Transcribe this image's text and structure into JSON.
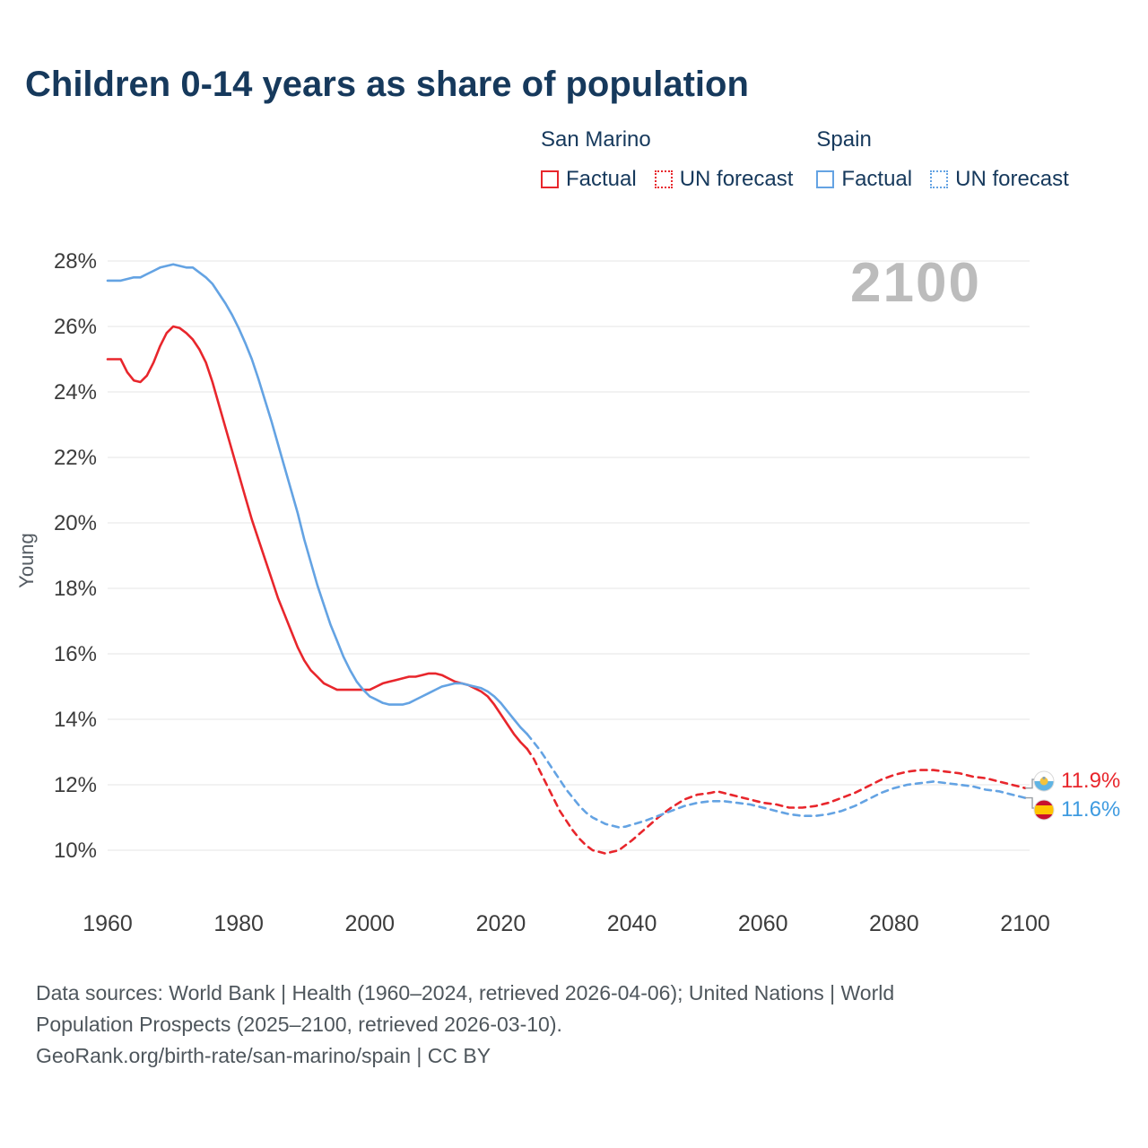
{
  "title": "Children 0-14 years as share of population",
  "watermark": "2100",
  "legend": {
    "groups": [
      {
        "name": "San Marino",
        "color": "#e8262c",
        "items": [
          {
            "label": "Factual",
            "style": "solid"
          },
          {
            "label": "UN forecast",
            "style": "dotted"
          }
        ]
      },
      {
        "name": "Spain",
        "color": "#64a3e3",
        "items": [
          {
            "label": "Factual",
            "style": "solid"
          },
          {
            "label": "UN forecast",
            "style": "dotted"
          }
        ]
      }
    ]
  },
  "end_labels": [
    {
      "label": "11.9%",
      "value": 11.9,
      "color": "#e8262c",
      "flag": "san-marino-flag-icon"
    },
    {
      "label": "11.6%",
      "value": 11.6,
      "color": "#3f9be0",
      "flag": "spain-flag-icon"
    }
  ],
  "footer": {
    "lines": [
      "Data sources: World Bank | Health (1960–2024, retrieved 2026-04-06); United Nations | World",
      "Population Prospects (2025–2100, retrieved 2026-03-10).",
      "GeoRank.org/birth-rate/san-marino/spain | CC BY"
    ]
  },
  "chart_data": {
    "type": "line",
    "title": "Children 0-14 years as share of population",
    "xlabel": "",
    "ylabel": "Young",
    "xlim": [
      1960,
      2100
    ],
    "ylim": [
      10,
      28
    ],
    "x_ticks": [
      1960,
      1980,
      2000,
      2020,
      2040,
      2060,
      2080,
      2100
    ],
    "y_ticks": [
      28,
      26,
      24,
      22,
      20,
      18,
      16,
      14,
      12,
      10
    ],
    "y_tick_suffix": "%",
    "grid": true,
    "legend_position": "top-right",
    "series": [
      {
        "name": "San Marino Factual",
        "color": "#e8262c",
        "dash": "solid",
        "points": [
          [
            1960,
            25.0
          ],
          [
            1961,
            25.0
          ],
          [
            1962,
            25.0
          ],
          [
            1963,
            24.6
          ],
          [
            1964,
            24.35
          ],
          [
            1965,
            24.3
          ],
          [
            1966,
            24.5
          ],
          [
            1967,
            24.9
          ],
          [
            1968,
            25.4
          ],
          [
            1969,
            25.8
          ],
          [
            1970,
            26.0
          ],
          [
            1971,
            25.95
          ],
          [
            1972,
            25.8
          ],
          [
            1973,
            25.6
          ],
          [
            1974,
            25.3
          ],
          [
            1975,
            24.9
          ],
          [
            1976,
            24.3
          ],
          [
            1977,
            23.6
          ],
          [
            1978,
            22.9
          ],
          [
            1979,
            22.2
          ],
          [
            1980,
            21.5
          ],
          [
            1981,
            20.8
          ],
          [
            1982,
            20.1
          ],
          [
            1983,
            19.5
          ],
          [
            1984,
            18.9
          ],
          [
            1985,
            18.3
          ],
          [
            1986,
            17.7
          ],
          [
            1987,
            17.2
          ],
          [
            1988,
            16.7
          ],
          [
            1989,
            16.2
          ],
          [
            1990,
            15.8
          ],
          [
            1991,
            15.5
          ],
          [
            1992,
            15.3
          ],
          [
            1993,
            15.1
          ],
          [
            1994,
            15.0
          ],
          [
            1995,
            14.9
          ],
          [
            1996,
            14.9
          ],
          [
            1997,
            14.9
          ],
          [
            1998,
            14.9
          ],
          [
            1999,
            14.9
          ],
          [
            2000,
            14.9
          ],
          [
            2001,
            15.0
          ],
          [
            2002,
            15.1
          ],
          [
            2003,
            15.15
          ],
          [
            2004,
            15.2
          ],
          [
            2005,
            15.25
          ],
          [
            2006,
            15.3
          ],
          [
            2007,
            15.3
          ],
          [
            2008,
            15.35
          ],
          [
            2009,
            15.4
          ],
          [
            2010,
            15.4
          ],
          [
            2011,
            15.35
          ],
          [
            2012,
            15.25
          ],
          [
            2013,
            15.15
          ],
          [
            2014,
            15.1
          ],
          [
            2015,
            15.05
          ],
          [
            2016,
            14.95
          ],
          [
            2017,
            14.85
          ],
          [
            2018,
            14.7
          ],
          [
            2019,
            14.45
          ],
          [
            2020,
            14.15
          ],
          [
            2021,
            13.85
          ],
          [
            2022,
            13.55
          ],
          [
            2023,
            13.3
          ],
          [
            2024,
            13.1
          ]
        ]
      },
      {
        "name": "San Marino UN forecast",
        "color": "#e8262c",
        "dash": "dashed",
        "points": [
          [
            2024,
            13.1
          ],
          [
            2025,
            12.8
          ],
          [
            2026,
            12.4
          ],
          [
            2027,
            12.0
          ],
          [
            2028,
            11.6
          ],
          [
            2029,
            11.2
          ],
          [
            2030,
            10.9
          ],
          [
            2031,
            10.6
          ],
          [
            2032,
            10.35
          ],
          [
            2033,
            10.15
          ],
          [
            2034,
            10.0
          ],
          [
            2035,
            9.95
          ],
          [
            2036,
            9.9
          ],
          [
            2037,
            9.95
          ],
          [
            2038,
            10.0
          ],
          [
            2039,
            10.15
          ],
          [
            2040,
            10.3
          ],
          [
            2042,
            10.65
          ],
          [
            2044,
            11.0
          ],
          [
            2046,
            11.3
          ],
          [
            2048,
            11.55
          ],
          [
            2050,
            11.7
          ],
          [
            2052,
            11.75
          ],
          [
            2053,
            11.8
          ],
          [
            2054,
            11.75
          ],
          [
            2056,
            11.65
          ],
          [
            2058,
            11.55
          ],
          [
            2060,
            11.45
          ],
          [
            2062,
            11.4
          ],
          [
            2064,
            11.3
          ],
          [
            2066,
            11.3
          ],
          [
            2068,
            11.35
          ],
          [
            2070,
            11.45
          ],
          [
            2072,
            11.6
          ],
          [
            2074,
            11.75
          ],
          [
            2076,
            11.95
          ],
          [
            2078,
            12.15
          ],
          [
            2080,
            12.3
          ],
          [
            2082,
            12.4
          ],
          [
            2084,
            12.45
          ],
          [
            2086,
            12.45
          ],
          [
            2088,
            12.4
          ],
          [
            2090,
            12.35
          ],
          [
            2092,
            12.25
          ],
          [
            2094,
            12.2
          ],
          [
            2096,
            12.1
          ],
          [
            2098,
            12.0
          ],
          [
            2100,
            11.9
          ]
        ]
      },
      {
        "name": "Spain Factual",
        "color": "#64a3e3",
        "dash": "solid",
        "points": [
          [
            1960,
            27.4
          ],
          [
            1962,
            27.4
          ],
          [
            1964,
            27.5
          ],
          [
            1965,
            27.5
          ],
          [
            1966,
            27.6
          ],
          [
            1967,
            27.7
          ],
          [
            1968,
            27.8
          ],
          [
            1969,
            27.85
          ],
          [
            1970,
            27.9
          ],
          [
            1971,
            27.85
          ],
          [
            1972,
            27.8
          ],
          [
            1973,
            27.8
          ],
          [
            1974,
            27.65
          ],
          [
            1975,
            27.5
          ],
          [
            1976,
            27.3
          ],
          [
            1977,
            27.0
          ],
          [
            1978,
            26.7
          ],
          [
            1979,
            26.35
          ],
          [
            1980,
            25.95
          ],
          [
            1981,
            25.5
          ],
          [
            1982,
            25.0
          ],
          [
            1983,
            24.4
          ],
          [
            1984,
            23.75
          ],
          [
            1985,
            23.1
          ],
          [
            1986,
            22.4
          ],
          [
            1987,
            21.7
          ],
          [
            1988,
            21.0
          ],
          [
            1989,
            20.3
          ],
          [
            1990,
            19.5
          ],
          [
            1991,
            18.8
          ],
          [
            1992,
            18.1
          ],
          [
            1993,
            17.5
          ],
          [
            1994,
            16.9
          ],
          [
            1995,
            16.4
          ],
          [
            1996,
            15.9
          ],
          [
            1997,
            15.5
          ],
          [
            1998,
            15.15
          ],
          [
            1999,
            14.9
          ],
          [
            2000,
            14.7
          ],
          [
            2001,
            14.6
          ],
          [
            2002,
            14.5
          ],
          [
            2003,
            14.45
          ],
          [
            2004,
            14.45
          ],
          [
            2005,
            14.45
          ],
          [
            2006,
            14.5
          ],
          [
            2007,
            14.6
          ],
          [
            2008,
            14.7
          ],
          [
            2009,
            14.8
          ],
          [
            2010,
            14.9
          ],
          [
            2011,
            15.0
          ],
          [
            2012,
            15.05
          ],
          [
            2013,
            15.1
          ],
          [
            2014,
            15.1
          ],
          [
            2015,
            15.05
          ],
          [
            2016,
            15.0
          ],
          [
            2017,
            14.95
          ],
          [
            2018,
            14.85
          ],
          [
            2019,
            14.7
          ],
          [
            2020,
            14.5
          ],
          [
            2021,
            14.25
          ],
          [
            2022,
            14.0
          ],
          [
            2023,
            13.75
          ],
          [
            2024,
            13.55
          ]
        ]
      },
      {
        "name": "Spain UN forecast",
        "color": "#64a3e3",
        "dash": "dashed",
        "points": [
          [
            2024,
            13.55
          ],
          [
            2025,
            13.3
          ],
          [
            2026,
            13.05
          ],
          [
            2027,
            12.75
          ],
          [
            2028,
            12.45
          ],
          [
            2029,
            12.15
          ],
          [
            2030,
            11.85
          ],
          [
            2031,
            11.6
          ],
          [
            2032,
            11.35
          ],
          [
            2033,
            11.15
          ],
          [
            2034,
            11.0
          ],
          [
            2035,
            10.9
          ],
          [
            2036,
            10.8
          ],
          [
            2037,
            10.75
          ],
          [
            2038,
            10.7
          ],
          [
            2039,
            10.72
          ],
          [
            2040,
            10.78
          ],
          [
            2042,
            10.9
          ],
          [
            2044,
            11.05
          ],
          [
            2046,
            11.2
          ],
          [
            2048,
            11.35
          ],
          [
            2050,
            11.45
          ],
          [
            2052,
            11.5
          ],
          [
            2054,
            11.5
          ],
          [
            2056,
            11.45
          ],
          [
            2058,
            11.4
          ],
          [
            2060,
            11.3
          ],
          [
            2062,
            11.2
          ],
          [
            2064,
            11.1
          ],
          [
            2066,
            11.05
          ],
          [
            2068,
            11.05
          ],
          [
            2070,
            11.1
          ],
          [
            2072,
            11.2
          ],
          [
            2074,
            11.35
          ],
          [
            2076,
            11.55
          ],
          [
            2078,
            11.75
          ],
          [
            2080,
            11.9
          ],
          [
            2082,
            12.0
          ],
          [
            2084,
            12.05
          ],
          [
            2086,
            12.1
          ],
          [
            2088,
            12.05
          ],
          [
            2090,
            12.0
          ],
          [
            2092,
            11.95
          ],
          [
            2094,
            11.85
          ],
          [
            2096,
            11.8
          ],
          [
            2098,
            11.7
          ],
          [
            2100,
            11.6
          ]
        ]
      }
    ]
  }
}
